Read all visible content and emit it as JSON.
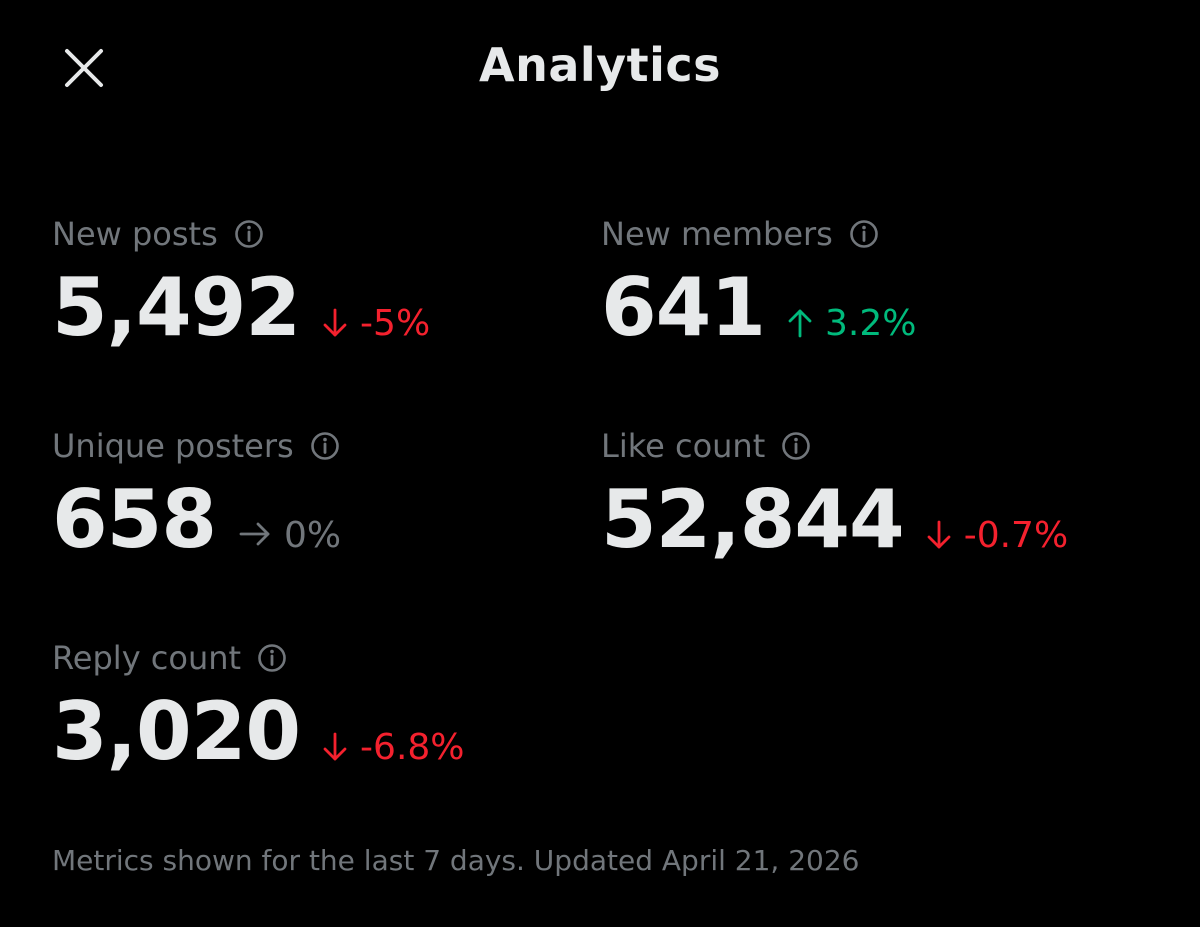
{
  "header": {
    "title": "Analytics",
    "close_icon": "close-icon"
  },
  "colors": {
    "background": "#000000",
    "primary_text": "#e7e9ea",
    "secondary_text": "#71767b",
    "negative": "#f4212e",
    "positive": "#00ba7c",
    "neutral": "#71767b"
  },
  "metrics": [
    {
      "label": "New posts",
      "value": "5,492",
      "change": "-5%",
      "direction": "down",
      "icon": "info-icon"
    },
    {
      "label": "New members",
      "value": "641",
      "change": "3.2%",
      "direction": "up",
      "icon": "info-icon"
    },
    {
      "label": "Unique posters",
      "value": "658",
      "change": "0%",
      "direction": "flat",
      "icon": "info-icon"
    },
    {
      "label": "Like count",
      "value": "52,844",
      "change": "-0.7%",
      "direction": "down",
      "icon": "info-icon"
    },
    {
      "label": "Reply count",
      "value": "3,020",
      "change": "-6.8%",
      "direction": "down",
      "icon": "info-icon"
    }
  ],
  "footer": {
    "note": "Metrics shown for the last 7 days. Updated April 21, 2026"
  }
}
